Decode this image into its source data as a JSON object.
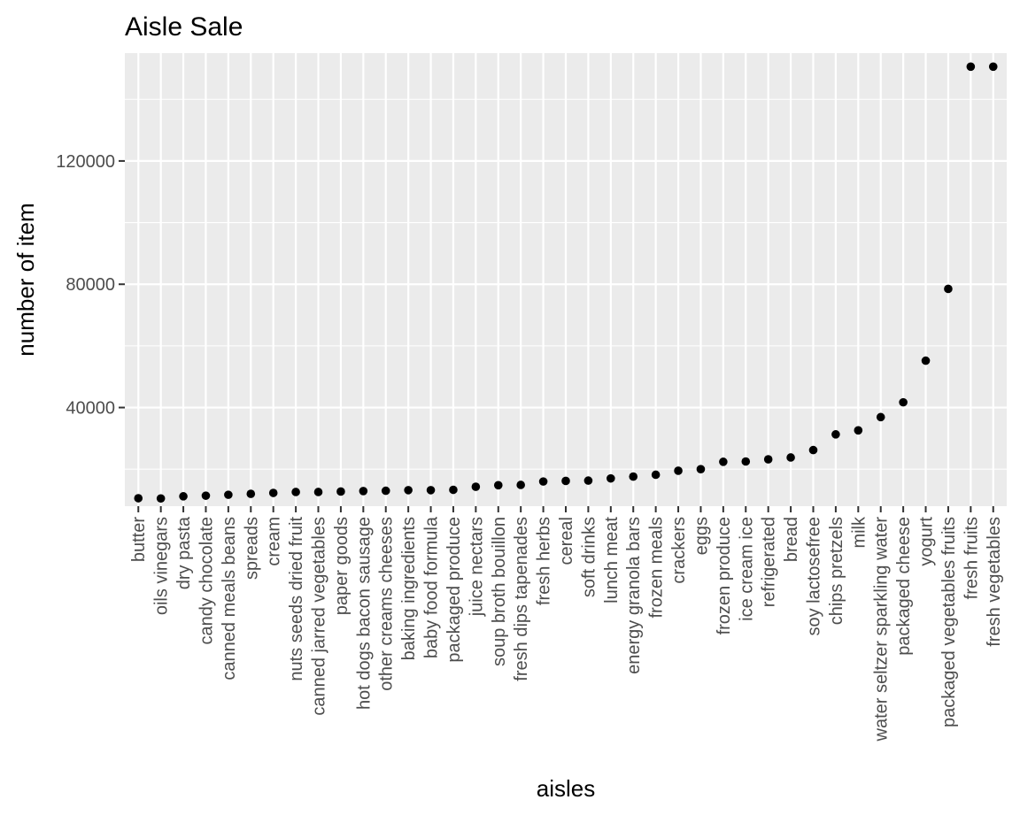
{
  "chart_data": {
    "type": "scatter",
    "title": "Aisle Sale",
    "xlabel": "aisles",
    "ylabel": "number of item",
    "ylim": [
      8000,
      155000
    ],
    "yticks": [
      40000,
      80000,
      120000
    ],
    "ytick_labels": [
      "40000",
      "80000",
      "120000"
    ],
    "grid": true,
    "background": "#EBEBEB",
    "point_color": "#000000",
    "categories": [
      "butter",
      "oils vinegars",
      "dry pasta",
      "candy chocolate",
      "canned meals beans",
      "spreads",
      "cream",
      "nuts seeds dried fruit",
      "canned jarred vegetables",
      "paper goods",
      "hot dogs bacon sausage",
      "other creams cheeses",
      "baking ingredients",
      "baby food formula",
      "packaged produce",
      "juice nectars",
      "soup broth bouillon",
      "fresh dips tapenades",
      "fresh herbs",
      "cereal",
      "soft drinks",
      "lunch meat",
      "energy granola bars",
      "frozen meals",
      "crackers",
      "eggs",
      "frozen produce",
      "ice cream ice",
      "refrigerated",
      "bread",
      "soy lactosefree",
      "chips pretzels",
      "milk",
      "water seltzer sparkling water",
      "packaged cheese",
      "yogurt",
      "packaged vegetables fruits",
      "fresh fruits",
      "fresh vegetables"
    ],
    "values": [
      10575,
      10500,
      11200,
      11400,
      11700,
      12000,
      12300,
      12600,
      12600,
      12750,
      12900,
      13000,
      13200,
      13200,
      13300,
      14300,
      14800,
      14900,
      16000,
      16200,
      16300,
      17000,
      17600,
      18200,
      19500,
      20000,
      22400,
      22500,
      23200,
      23800,
      26200,
      31300,
      32600,
      36900,
      41700,
      55200,
      78500,
      150600,
      150600
    ]
  }
}
